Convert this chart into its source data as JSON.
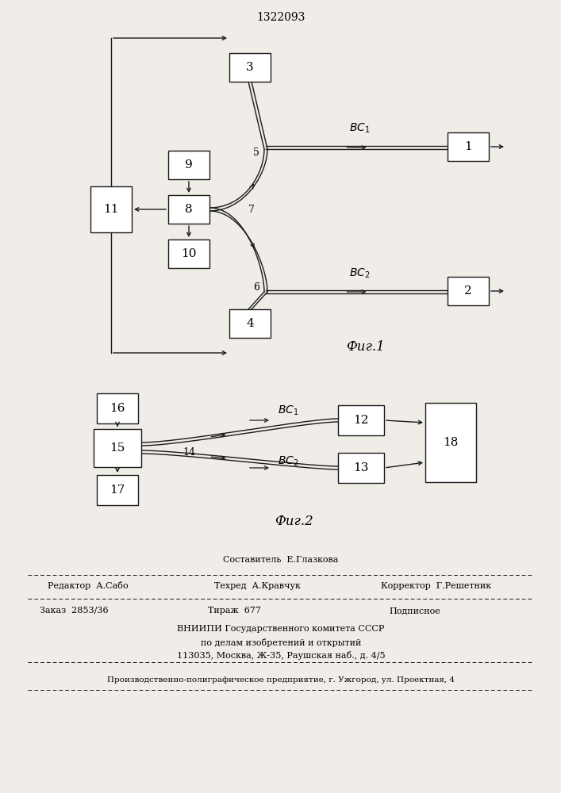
{
  "title": "1322093",
  "bg_color": "#f0ede8",
  "line_color": "#1a1a1a",
  "fig1_label": "Фиг.1",
  "fig2_label": "Фиг.2",
  "footer": {
    "sostavitel": "Составитель  Е.Глазкова",
    "redaktor": "Редактор  А.Сабо",
    "tehred": "Техред  А.Кравчук",
    "korrektor": "Корректор  Г.Решетник",
    "zakaz": "Заказ  2853/36",
    "tirazh": "Тираж  677",
    "podpisnoe": "Подписное",
    "vniip1": "ВНИИПИ Государственного комитета СССР",
    "vniip2": "по делам изобретений и открытий",
    "vniip3": "113035, Москва, Ж-35, Раушская наб., д. 4/5",
    "predpr": "Производственно-полиграфическое предприятие, г. Ужгород, ул. Проектная, 4"
  }
}
